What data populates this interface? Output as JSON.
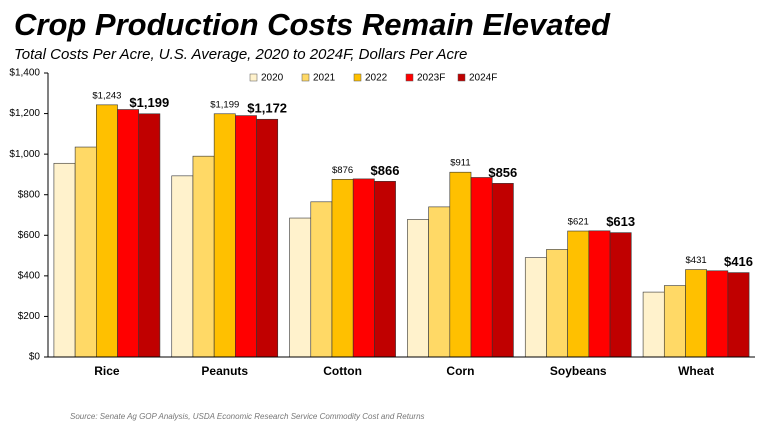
{
  "chart_data": {
    "type": "bar",
    "title": "Crop Production Costs Remain Elevated",
    "subtitle": "Total Costs Per Acre, U.S. Average, 2020 to 2024F, Dollars Per Acre",
    "source": "Source: Senate Ag GOP Analysis, USDA Economic Research Service Commodity Cost and Returns",
    "categories": [
      "Rice",
      "Peanuts",
      "Cotton",
      "Corn",
      "Soybeans",
      "Wheat"
    ],
    "series": [
      {
        "name": "2020",
        "color": "#fff2cc",
        "values": [
          955,
          893,
          685,
          678,
          490,
          320
        ]
      },
      {
        "name": "2021",
        "color": "#ffd966",
        "values": [
          1035,
          990,
          765,
          740,
          530,
          352
        ]
      },
      {
        "name": "2022",
        "color": "#ffc000",
        "values": [
          1243,
          1199,
          876,
          911,
          621,
          431
        ],
        "value_labels": [
          "$1,243",
          "$1,199",
          "$876",
          "$911",
          "$621",
          "$431"
        ]
      },
      {
        "name": "2023F",
        "color": "#ff0000",
        "values": [
          1220,
          1190,
          878,
          885,
          622,
          425
        ]
      },
      {
        "name": "2024F",
        "color": "#c00000",
        "values": [
          1199,
          1172,
          866,
          856,
          613,
          416
        ],
        "value_labels": [
          "$1,199",
          "$1,172",
          "$866",
          "$856",
          "$613",
          "$416"
        ]
      }
    ],
    "ylim": [
      0,
      1400
    ],
    "yticks": [
      {
        "value": 0,
        "label": "$0"
      },
      {
        "value": 200,
        "label": "$200"
      },
      {
        "value": 400,
        "label": "$400"
      },
      {
        "value": 600,
        "label": "$600"
      },
      {
        "value": 800,
        "label": "$800"
      },
      {
        "value": 1000,
        "label": "$1,000"
      },
      {
        "value": 1200,
        "label": "$1,200"
      },
      {
        "value": 1400,
        "label": "$1,400"
      }
    ],
    "grid": false,
    "legend": "top"
  }
}
